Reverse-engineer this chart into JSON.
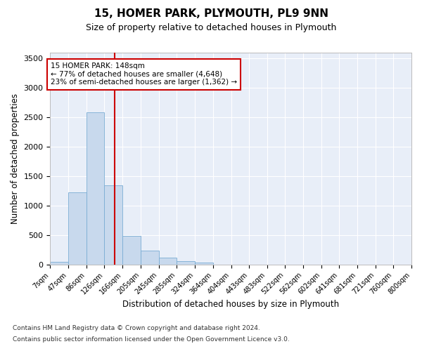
{
  "title": "15, HOMER PARK, PLYMOUTH, PL9 9NN",
  "subtitle": "Size of property relative to detached houses in Plymouth",
  "xlabel": "Distribution of detached houses by size in Plymouth",
  "ylabel": "Number of detached properties",
  "footnote1": "Contains HM Land Registry data © Crown copyright and database right 2024.",
  "footnote2": "Contains public sector information licensed under the Open Government Licence v3.0.",
  "annotation_line1": "15 HOMER PARK: 148sqm",
  "annotation_line2": "← 77% of detached houses are smaller (4,648)",
  "annotation_line3": "23% of semi-detached houses are larger (1,362) →",
  "bar_color": "#c8d9ed",
  "bar_edge_color": "#7aadd4",
  "background_color": "#e8eef8",
  "vline_color": "#cc0000",
  "vline_x": 148,
  "bin_edges": [
    7,
    47,
    86,
    126,
    166,
    205,
    245,
    285,
    324,
    364,
    404,
    443,
    483,
    522,
    562,
    602,
    641,
    681,
    721,
    760,
    800
  ],
  "bin_labels": [
    "7sqm",
    "47sqm",
    "86sqm",
    "126sqm",
    "166sqm",
    "205sqm",
    "245sqm",
    "285sqm",
    "324sqm",
    "364sqm",
    "404sqm",
    "443sqm",
    "483sqm",
    "522sqm",
    "562sqm",
    "602sqm",
    "641sqm",
    "681sqm",
    "721sqm",
    "760sqm",
    "800sqm"
  ],
  "bar_heights": [
    50,
    1230,
    2580,
    1340,
    490,
    230,
    115,
    55,
    30,
    0,
    0,
    0,
    0,
    0,
    0,
    0,
    0,
    0,
    0,
    0
  ],
  "ylim": [
    0,
    3600
  ],
  "yticks": [
    0,
    500,
    1000,
    1500,
    2000,
    2500,
    3000,
    3500
  ]
}
